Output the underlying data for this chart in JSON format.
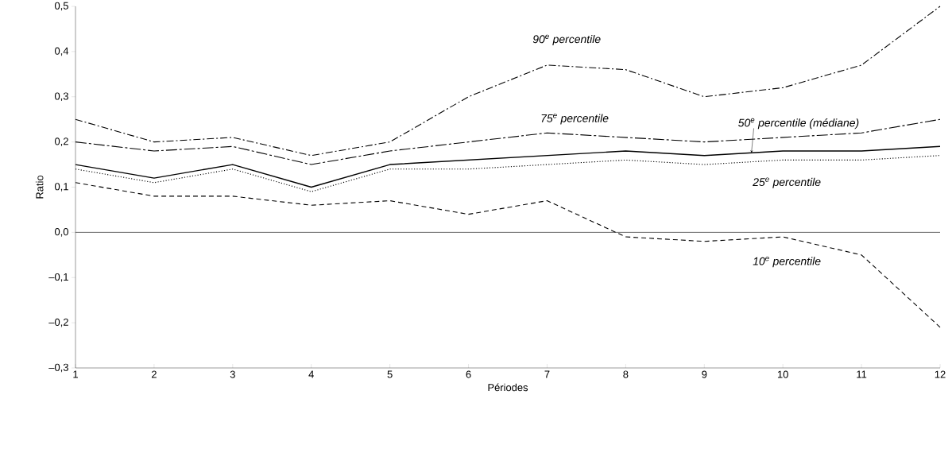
{
  "chart_data": {
    "type": "line",
    "xlabel": "Périodes",
    "ylabel": "Ratio",
    "x": [
      1,
      2,
      3,
      4,
      5,
      6,
      7,
      8,
      9,
      10,
      11,
      12
    ],
    "xlim": [
      1,
      12
    ],
    "xticks": [
      1,
      2,
      3,
      4,
      5,
      6,
      7,
      8,
      9,
      10,
      11,
      12
    ],
    "ylim": [
      -0.3,
      0.5
    ],
    "yticks": [
      {
        "value": -0.3,
        "label": "–0,3"
      },
      {
        "value": -0.2,
        "label": "–0,2"
      },
      {
        "value": -0.1,
        "label": "–0,1"
      },
      {
        "value": 0,
        "label": "0,0"
      },
      {
        "value": 0.1,
        "label": "0,1"
      },
      {
        "value": 0.2,
        "label": "0,2"
      },
      {
        "value": 0.3,
        "label": "0,3"
      },
      {
        "value": 0.4,
        "label": "0,4"
      },
      {
        "value": 0.5,
        "label": "0,5"
      }
    ],
    "ref_lines": [
      {
        "axis": "y",
        "value": 0,
        "color": "#000000"
      }
    ],
    "series": [
      {
        "name": "90$^{e}$ percentile",
        "color": "#000000",
        "line_style": "dashdot",
        "values": [
          0.25,
          0.2,
          0.21,
          0.17,
          0.2,
          0.3,
          0.37,
          0.36,
          0.3,
          0.32,
          0.37,
          0.5
        ]
      },
      {
        "name": "75$^{e}$ percentile",
        "color": "#000000",
        "line_style": "longdashdot",
        "values": [
          0.2,
          0.18,
          0.19,
          0.15,
          0.18,
          0.2,
          0.22,
          0.21,
          0.2,
          0.21,
          0.22,
          0.25
        ]
      },
      {
        "name": "50$^{e}$ percentile (médiane)",
        "color": "#000000",
        "line_style": "solid",
        "values": [
          0.15,
          0.12,
          0.15,
          0.1,
          0.15,
          0.16,
          0.17,
          0.18,
          0.17,
          0.18,
          0.18,
          0.19
        ]
      },
      {
        "name": "25$^{e}$ percentile",
        "color": "#000000",
        "line_style": "dotted",
        "values": [
          0.14,
          0.11,
          0.14,
          0.09,
          0.14,
          0.14,
          0.15,
          0.16,
          0.15,
          0.16,
          0.16,
          0.17
        ]
      },
      {
        "name": "10$^{e}$ percentile",
        "color": "#000000",
        "line_style": "dashed",
        "values": [
          0.11,
          0.08,
          0.08,
          0.06,
          0.07,
          0.04,
          0.07,
          -0.01,
          -0.02,
          -0.01,
          -0.05,
          -0.21
        ]
      }
    ]
  }
}
